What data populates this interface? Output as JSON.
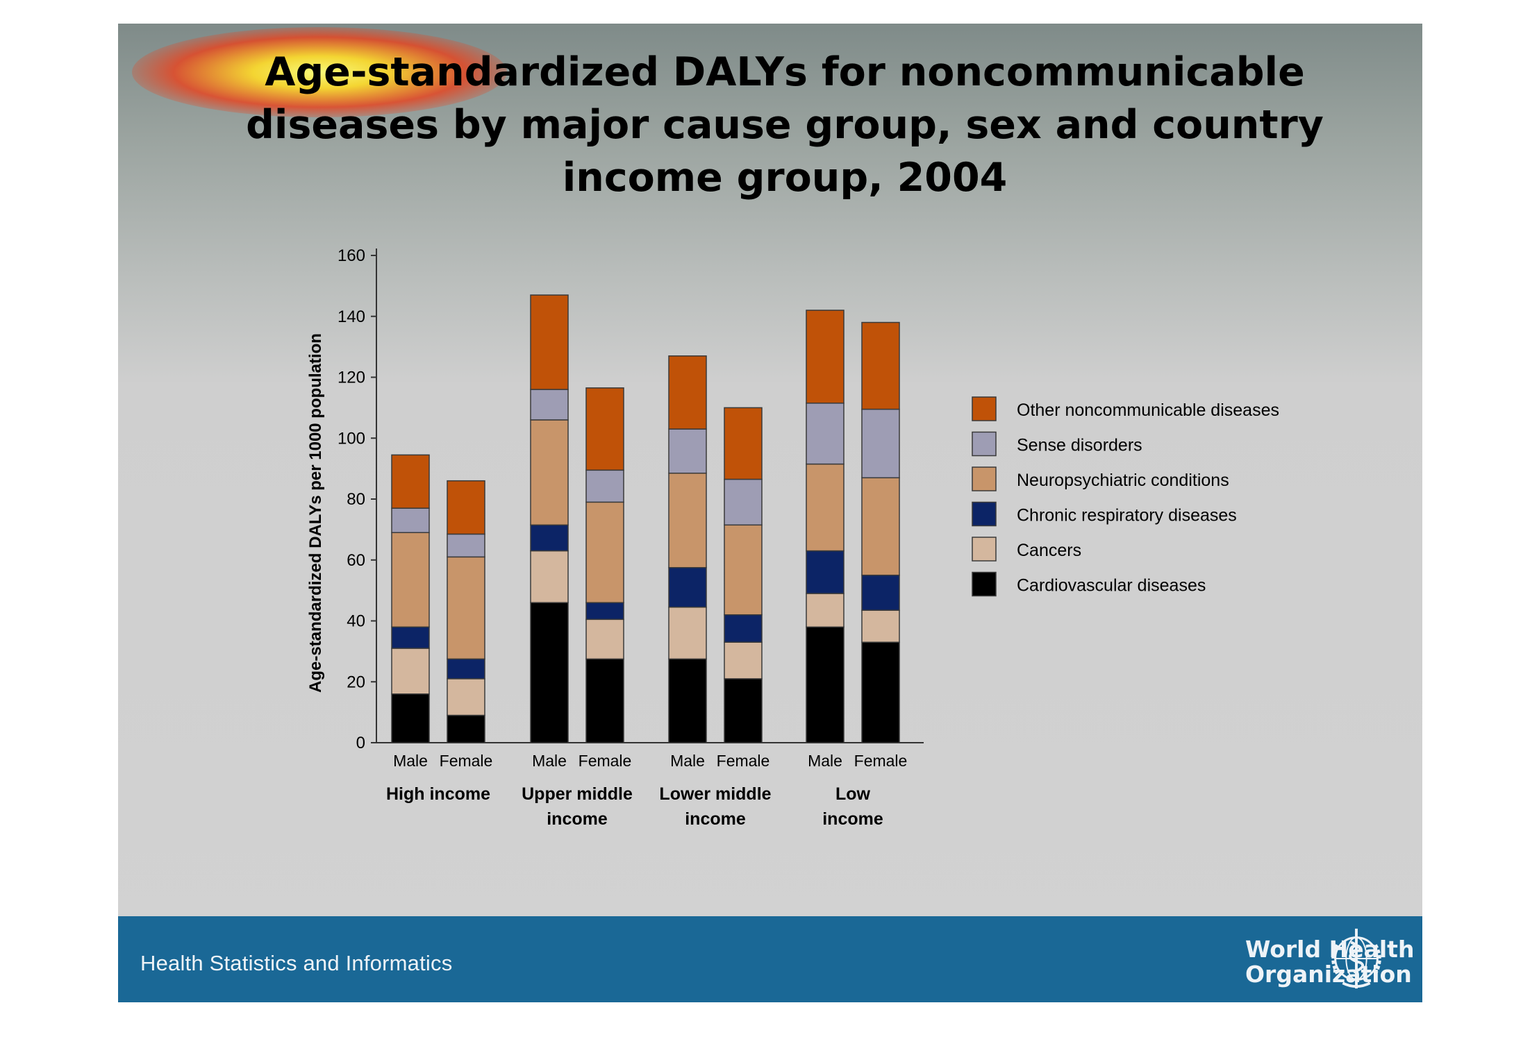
{
  "title_lines": [
    "Age-standardized DALYs for noncommunicable",
    "diseases by major cause group,  sex and country",
    "income group, 2004"
  ],
  "chart_data": {
    "type": "bar",
    "stacked": true,
    "title": "Age-standardized DALYs for noncommunicable diseases by major cause group,  sex and country income group, 2004",
    "ylabel": "Age-standardized DALYs per 1000 population",
    "ylim": [
      0,
      160
    ],
    "yticks": [
      0,
      20,
      40,
      60,
      80,
      100,
      120,
      140,
      160
    ],
    "groups": [
      "High income",
      "Upper middle income",
      "Lower middle income",
      "Low income"
    ],
    "group_label_lines": [
      [
        "High income"
      ],
      [
        "Upper middle",
        "income"
      ],
      [
        "Lower middle",
        "income"
      ],
      [
        "Low",
        "income"
      ]
    ],
    "categories": [
      "Male",
      "Female",
      "Male",
      "Female",
      "Male",
      "Female",
      "Male",
      "Female"
    ],
    "legend_position": "right",
    "series": [
      {
        "name": "Cardiovascular diseases",
        "color": "#000000",
        "values": [
          16,
          9,
          46,
          27.5,
          27.5,
          21,
          38,
          33
        ]
      },
      {
        "name": "Cancers",
        "color": "#d4b79e",
        "values": [
          15,
          12,
          17,
          13,
          17,
          12,
          11,
          10.5
        ]
      },
      {
        "name": "Chronic respiratory diseases",
        "color": "#0c2466",
        "values": [
          7,
          6.5,
          8.5,
          5.5,
          13,
          9,
          14,
          11.5
        ]
      },
      {
        "name": "Neuropsychiatric conditions",
        "color": "#c8956a",
        "values": [
          31,
          33.5,
          34.5,
          33,
          31,
          29.5,
          28.5,
          32
        ]
      },
      {
        "name": "Sense disorders",
        "color": "#9e9db4",
        "values": [
          8,
          7.5,
          10,
          10.5,
          14.5,
          15,
          20,
          22.5
        ]
      },
      {
        "name": "Other noncommunicable diseases",
        "color": "#c05208",
        "values": [
          17.5,
          17.5,
          31,
          27,
          24,
          23.5,
          30.5,
          28.5
        ]
      }
    ]
  },
  "footer": {
    "unit_name": "Health Statistics and Informatics",
    "org_name_line1": "World Health",
    "org_name_line2": "Organization",
    "logo_icon": "who-emblem-icon"
  }
}
